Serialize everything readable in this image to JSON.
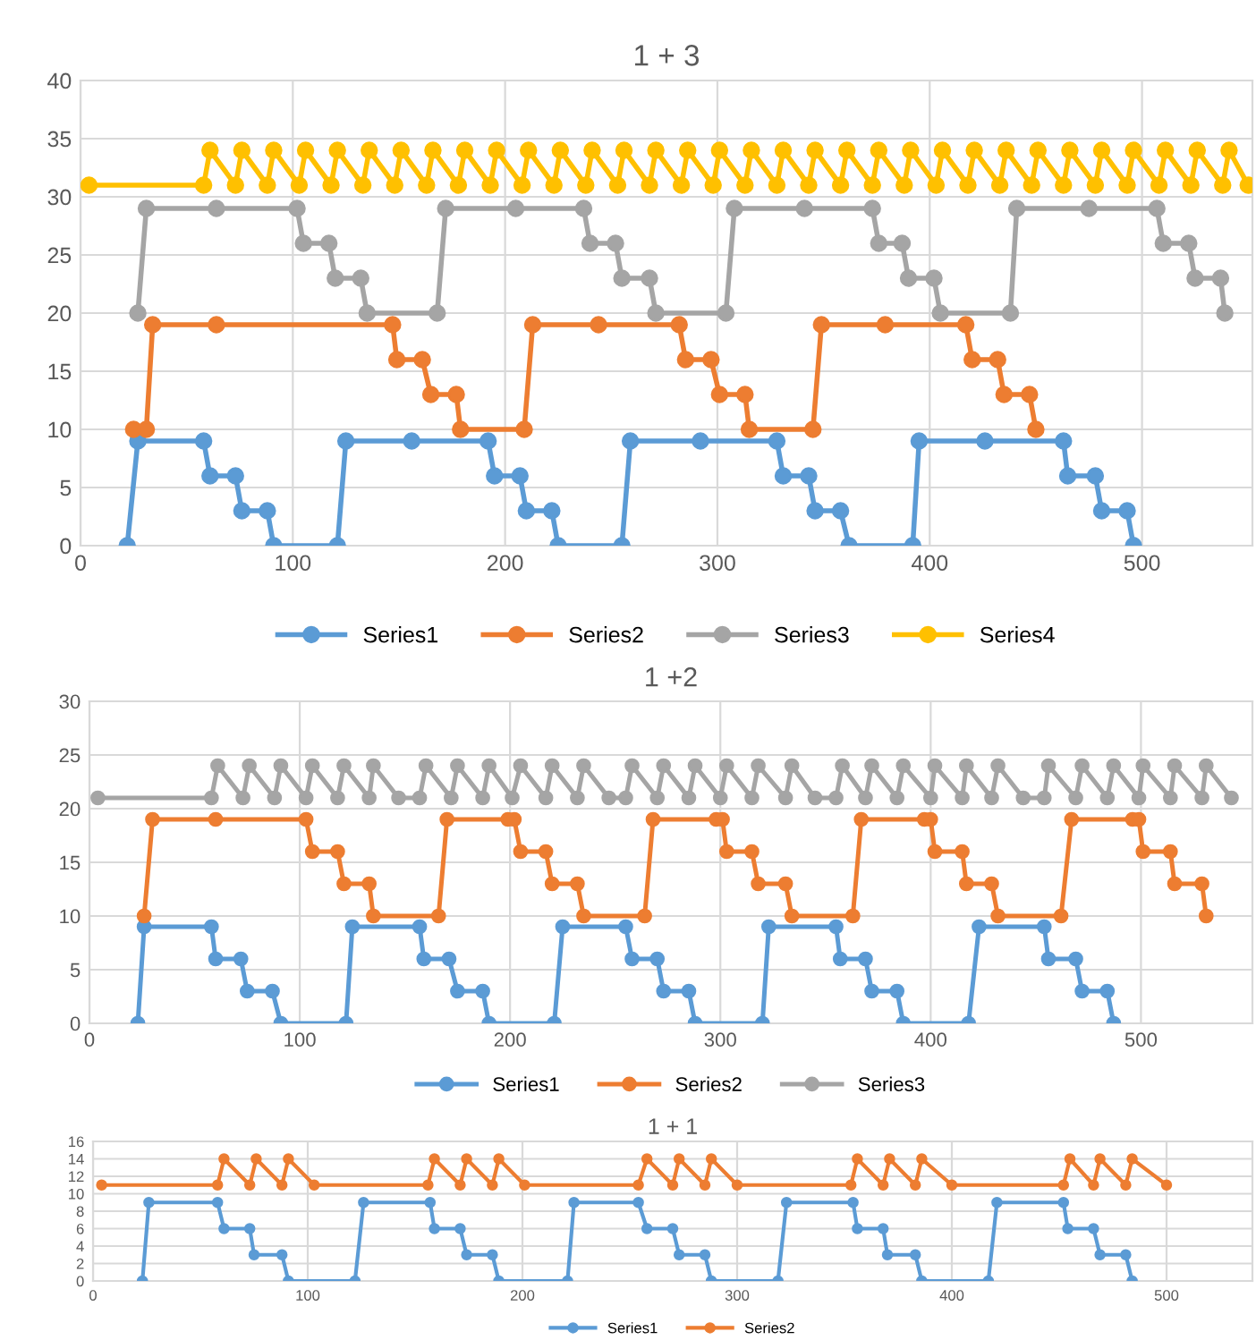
{
  "chart_data": [
    {
      "type": "line",
      "title": "1 + 3",
      "xlim": [
        0,
        552
      ],
      "xticks": [
        0,
        100,
        200,
        300,
        400,
        500
      ],
      "ylim": [
        0,
        40
      ],
      "yticks": [
        0,
        5,
        10,
        15,
        20,
        25,
        30,
        35,
        40
      ],
      "grid": true,
      "legend": "bottom",
      "marker": "circle",
      "line_style": "solid",
      "series": [
        {
          "name": "Series1",
          "color": "#5b9bd5",
          "x": [
            22,
            27,
            58,
            61,
            73,
            76,
            88,
            91,
            121,
            125,
            156,
            192,
            195,
            207,
            210,
            222,
            225,
            255,
            259,
            292,
            328,
            331,
            343,
            346,
            358,
            362,
            392,
            395,
            426,
            463,
            465,
            478,
            481,
            493,
            496
          ],
          "values": [
            0,
            9,
            9,
            6,
            6,
            3,
            3,
            0,
            0,
            9,
            9,
            9,
            6,
            6,
            3,
            3,
            0,
            0,
            9,
            9,
            9,
            6,
            6,
            3,
            3,
            0,
            0,
            9,
            9,
            9,
            6,
            6,
            3,
            3,
            0
          ]
        },
        {
          "name": "Series2",
          "color": "#ed7d31",
          "x": [
            25,
            31,
            34,
            64,
            147,
            149,
            161,
            165,
            177,
            179,
            209,
            213,
            244,
            282,
            285,
            297,
            301,
            313,
            315,
            345,
            349,
            379,
            417,
            420,
            432,
            435,
            447,
            450
          ],
          "values": [
            10,
            10,
            19,
            19,
            19,
            16,
            16,
            13,
            13,
            10,
            10,
            19,
            19,
            19,
            16,
            16,
            13,
            13,
            10,
            10,
            19,
            19,
            19,
            16,
            16,
            13,
            13,
            10
          ]
        },
        {
          "name": "Series3",
          "color": "#a5a5a5",
          "x": [
            27,
            31,
            64,
            102,
            105,
            117,
            120,
            132,
            135,
            168,
            172,
            205,
            237,
            240,
            252,
            255,
            268,
            271,
            304,
            308,
            341,
            373,
            376,
            387,
            390,
            402,
            405,
            438,
            441,
            475,
            507,
            510,
            522,
            525,
            537,
            539
          ],
          "values": [
            20,
            29,
            29,
            29,
            26,
            26,
            23,
            23,
            20,
            20,
            29,
            29,
            29,
            26,
            26,
            23,
            23,
            20,
            20,
            29,
            29,
            29,
            26,
            26,
            23,
            23,
            20,
            20,
            29,
            29,
            29,
            26,
            26,
            23,
            23,
            20
          ]
        },
        {
          "name": "Series4",
          "color": "#ffc000",
          "x": [
            4,
            58,
            61,
            73,
            76,
            88,
            91,
            103,
            106,
            118,
            121,
            133,
            136,
            148,
            151,
            163,
            166,
            178,
            181,
            193,
            196,
            208,
            211,
            223,
            226,
            238,
            241,
            253,
            256,
            268,
            271,
            283,
            286,
            298,
            301,
            313,
            316,
            328,
            331,
            343,
            346,
            358,
            361,
            373,
            376,
            388,
            391,
            403,
            406,
            418,
            421,
            433,
            436,
            448,
            451,
            463,
            466,
            478,
            481,
            493,
            496,
            508,
            511,
            523,
            526,
            538,
            541,
            550
          ],
          "values": [
            31,
            31,
            34,
            31,
            34,
            31,
            34,
            31,
            34,
            31,
            34,
            31,
            34,
            31,
            34,
            31,
            34,
            31,
            34,
            31,
            34,
            31,
            34,
            31,
            34,
            31,
            34,
            31,
            34,
            31,
            34,
            31,
            34,
            31,
            34,
            31,
            34,
            31,
            34,
            31,
            34,
            31,
            34,
            31,
            34,
            31,
            34,
            31,
            34,
            31,
            34,
            31,
            34,
            31,
            34,
            31,
            34,
            31,
            34,
            31,
            34,
            31,
            34,
            31,
            34,
            31,
            34,
            31
          ]
        }
      ]
    },
    {
      "type": "line",
      "title": "1 +2",
      "xlim": [
        0,
        553
      ],
      "xticks": [
        0,
        100,
        200,
        300,
        400,
        500
      ],
      "ylim": [
        0,
        30
      ],
      "yticks": [
        0,
        5,
        10,
        15,
        20,
        25,
        30
      ],
      "grid": true,
      "legend": "bottom",
      "marker": "circle",
      "line_style": "solid",
      "series": [
        {
          "name": "Series1",
          "color": "#5b9bd5",
          "x": [
            23,
            26,
            58,
            60,
            72,
            75,
            87,
            91,
            122,
            125,
            157,
            159,
            171,
            175,
            187,
            190,
            221,
            225,
            255,
            258,
            270,
            273,
            285,
            288,
            320,
            323,
            355,
            357,
            369,
            372,
            384,
            387,
            418,
            423,
            454,
            456,
            469,
            472,
            484,
            487
          ],
          "values": [
            0,
            9,
            9,
            6,
            6,
            3,
            3,
            0,
            0,
            9,
            9,
            6,
            6,
            3,
            3,
            0,
            0,
            9,
            9,
            6,
            6,
            3,
            3,
            0,
            0,
            9,
            9,
            6,
            6,
            3,
            3,
            0,
            0,
            9,
            9,
            6,
            6,
            3,
            3,
            0
          ]
        },
        {
          "name": "Series2",
          "color": "#ed7d31",
          "x": [
            26,
            30,
            60,
            103,
            106,
            118,
            121,
            133,
            135,
            166,
            170,
            199,
            202,
            205,
            217,
            220,
            232,
            235,
            264,
            268,
            298,
            301,
            303,
            315,
            318,
            331,
            334,
            363,
            367,
            397,
            400,
            402,
            415,
            417,
            429,
            432,
            462,
            467,
            496,
            499,
            501,
            514,
            516,
            529,
            531
          ],
          "values": [
            10,
            19,
            19,
            19,
            16,
            16,
            13,
            13,
            10,
            10,
            19,
            19,
            19,
            16,
            16,
            13,
            13,
            10,
            10,
            19,
            19,
            19,
            16,
            16,
            13,
            13,
            10,
            10,
            19,
            19,
            19,
            16,
            16,
            13,
            13,
            10,
            10,
            19,
            19,
            19,
            16,
            16,
            13,
            13,
            10
          ]
        },
        {
          "name": "Series3",
          "color": "#a5a5a5",
          "x": [
            4,
            58,
            61,
            73,
            76,
            88,
            91,
            103,
            106,
            118,
            121,
            133,
            135,
            147,
            157,
            160,
            172,
            175,
            187,
            190,
            201,
            205,
            217,
            220,
            232,
            235,
            247,
            255,
            258,
            270,
            273,
            285,
            288,
            300,
            303,
            315,
            318,
            331,
            334,
            345,
            355,
            358,
            369,
            372,
            384,
            387,
            400,
            402,
            415,
            417,
            429,
            432,
            444,
            454,
            456,
            469,
            472,
            484,
            487,
            499,
            501,
            514,
            516,
            529,
            531,
            543
          ],
          "values": [
            21,
            21,
            24,
            21,
            24,
            21,
            24,
            21,
            24,
            21,
            24,
            21,
            24,
            21,
            21,
            24,
            21,
            24,
            21,
            24,
            21,
            24,
            21,
            24,
            21,
            24,
            21,
            21,
            24,
            21,
            24,
            21,
            24,
            21,
            24,
            21,
            24,
            21,
            24,
            21,
            21,
            24,
            21,
            24,
            21,
            24,
            21,
            24,
            21,
            24,
            21,
            24,
            21,
            21,
            24,
            21,
            24,
            21,
            24,
            21,
            24,
            21,
            24,
            21,
            24,
            21
          ]
        }
      ]
    },
    {
      "type": "line",
      "title": "1 + 1",
      "xlim": [
        0,
        540
      ],
      "xticks": [
        0,
        100,
        200,
        300,
        400,
        500
      ],
      "ylim": [
        0,
        16
      ],
      "yticks": [
        0,
        2,
        4,
        6,
        8,
        10,
        12,
        14,
        16
      ],
      "grid": true,
      "legend": "bottom",
      "marker": "circle",
      "line_style": "solid",
      "series": [
        {
          "name": "Series1",
          "color": "#5b9bd5",
          "x": [
            23,
            26,
            58,
            61,
            73,
            75,
            88,
            91,
            122,
            126,
            157,
            159,
            171,
            174,
            186,
            189,
            221,
            224,
            254,
            258,
            270,
            273,
            285,
            288,
            319,
            323,
            354,
            356,
            368,
            370,
            383,
            386,
            417,
            421,
            452,
            454,
            466,
            469,
            481,
            484
          ],
          "values": [
            0,
            9,
            9,
            6,
            6,
            3,
            3,
            0,
            0,
            9,
            9,
            6,
            6,
            3,
            3,
            0,
            0,
            9,
            9,
            6,
            6,
            3,
            3,
            0,
            0,
            9,
            9,
            6,
            6,
            3,
            3,
            0,
            0,
            9,
            9,
            6,
            6,
            3,
            3,
            0
          ]
        },
        {
          "name": "Series2",
          "color": "#ed7d31",
          "x": [
            4,
            58,
            61,
            73,
            76,
            88,
            91,
            103,
            156,
            159,
            171,
            174,
            186,
            189,
            201,
            254,
            258,
            270,
            273,
            285,
            288,
            300,
            353,
            356,
            368,
            371,
            383,
            386,
            400,
            452,
            455,
            466,
            469,
            481,
            484,
            500
          ],
          "values": [
            11,
            11,
            14,
            11,
            14,
            11,
            14,
            11,
            11,
            14,
            11,
            14,
            11,
            14,
            11,
            11,
            14,
            11,
            14,
            11,
            14,
            11,
            11,
            14,
            11,
            14,
            11,
            14,
            11,
            11,
            14,
            11,
            14,
            11,
            14,
            11
          ]
        }
      ]
    }
  ]
}
